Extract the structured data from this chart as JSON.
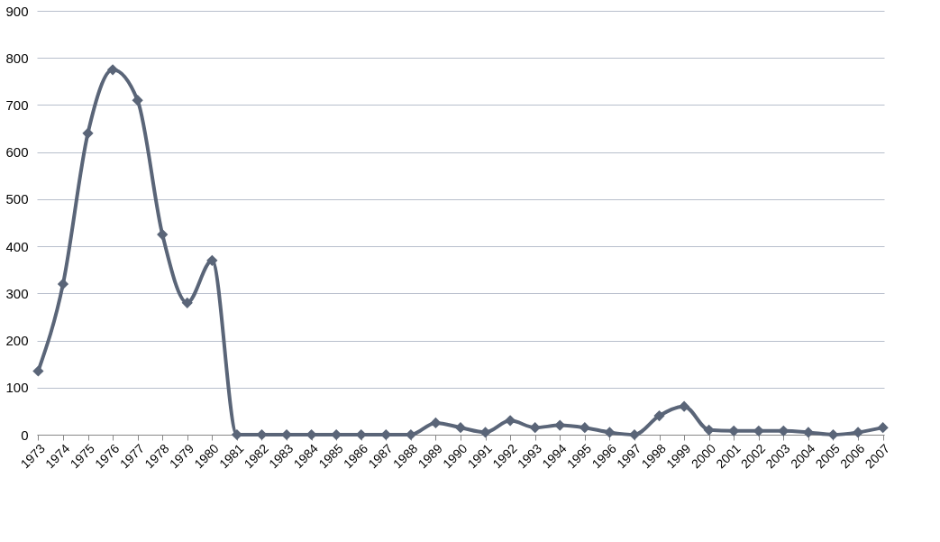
{
  "chart_data": {
    "type": "line",
    "categories": [
      "1973",
      "1974",
      "1975",
      "1976",
      "1977",
      "1978",
      "1979",
      "1980",
      "1981",
      "1982",
      "1983",
      "1984",
      "1985",
      "1986",
      "1987",
      "1988",
      "1989",
      "1990",
      "1991",
      "1992",
      "1993",
      "1994",
      "1995",
      "1996",
      "1997",
      "1998",
      "1999",
      "2000",
      "2001",
      "2002",
      "2003",
      "2004",
      "2005",
      "2006",
      "2007"
    ],
    "series": [
      {
        "color": "#5a6578",
        "values": [
          135,
          320,
          640,
          775,
          710,
          425,
          280,
          370,
          0,
          0,
          0,
          0,
          0,
          0,
          0,
          0,
          25,
          15,
          5,
          30,
          15,
          20,
          15,
          5,
          0,
          40,
          60,
          10,
          8,
          8,
          8,
          5,
          0,
          5,
          15
        ]
      }
    ],
    "ylim": [
      0,
      900
    ],
    "yticks": [
      0,
      100,
      200,
      300,
      400,
      500,
      600,
      700,
      800,
      900
    ],
    "grid": "y",
    "marker": "diamond",
    "line_style": "solid"
  }
}
